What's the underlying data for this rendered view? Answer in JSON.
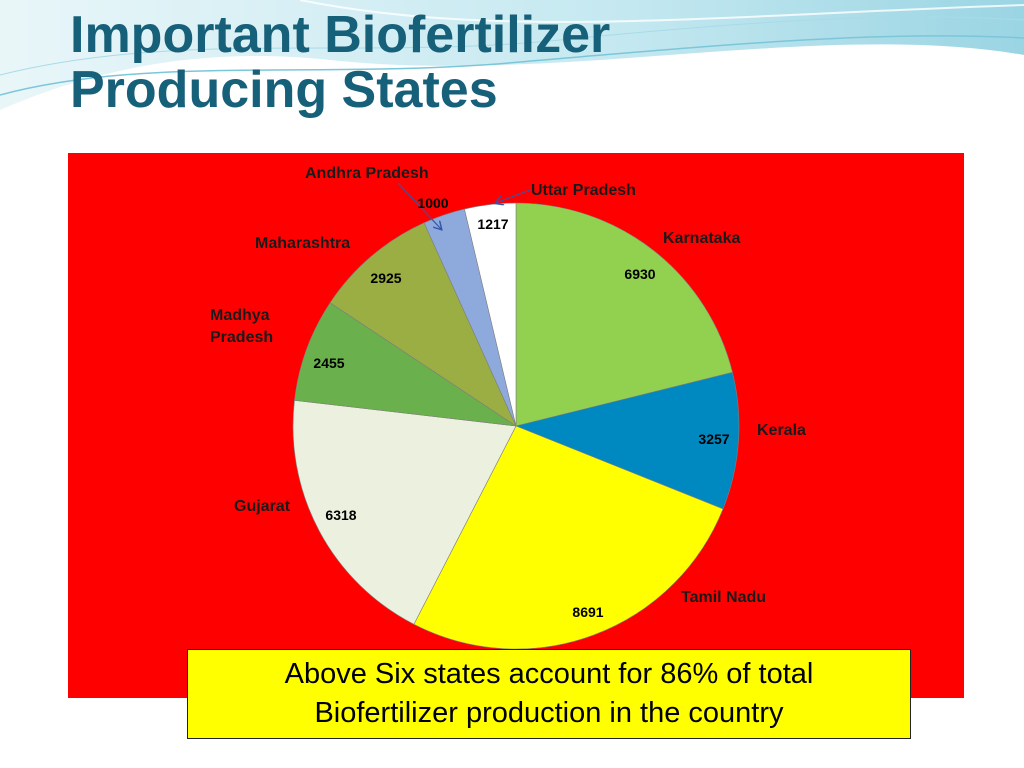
{
  "slide": {
    "title": "Important Biofertilizer\nProducing States",
    "note": "Above Six states account for 86% of total\nBiofertilizer production in the country"
  },
  "colors": {
    "background": "#ffffff",
    "title": "#17607a",
    "panel": "#ff0000",
    "note_box": "#ffff00"
  },
  "chart_data": {
    "type": "pie",
    "title": "",
    "start": "12 o'clock",
    "direction": "clockwise",
    "legend": "none",
    "slices": [
      {
        "label": "Karnataka",
        "value": 6930,
        "color": "#92d050"
      },
      {
        "label": "Kerala",
        "value": 3257,
        "color": "#0088c0"
      },
      {
        "label": "Tamil Nadu",
        "value": 8691,
        "color": "#ffff00"
      },
      {
        "label": "Gujarat",
        "value": 6318,
        "color": "#ebf1de"
      },
      {
        "label": "Madhya\nPradesh",
        "value": 2455,
        "color": "#6ab04c"
      },
      {
        "label": "Maharashtra",
        "value": 2925,
        "color": "#9bae44"
      },
      {
        "label": "Andhra Pradesh",
        "value": 1000,
        "color": "#8ea9db"
      },
      {
        "label": "Uttar Pradesh",
        "value": 1217,
        "color": "#ffffff"
      }
    ]
  }
}
